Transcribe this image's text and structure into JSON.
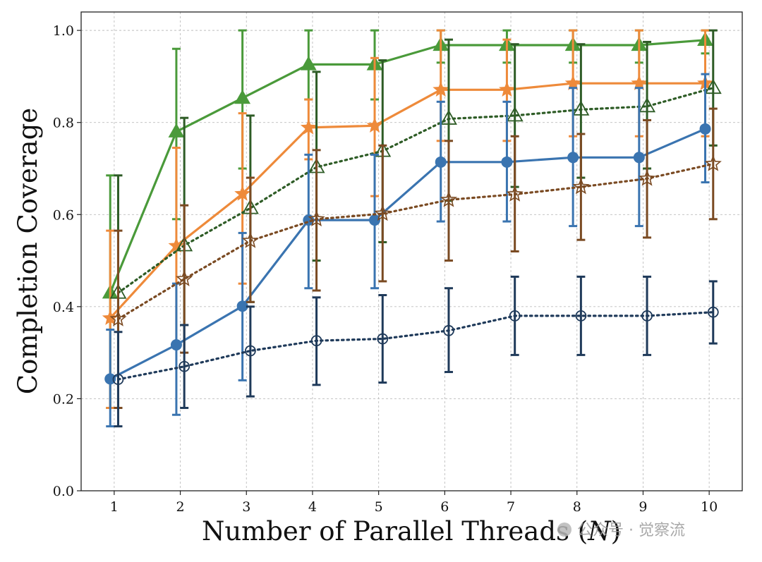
{
  "chart_data": {
    "type": "line",
    "xlabel": "Number of Parallel Threads (N)",
    "xlabel_prefix": "Number of Parallel Threads (",
    "xlabel_var": "N",
    "xlabel_suffix": ")",
    "ylabel": "Completion Coverage",
    "x": [
      1,
      2,
      3,
      4,
      5,
      6,
      7,
      8,
      9,
      10
    ],
    "xlim": [
      0.5,
      10.5
    ],
    "ylim": [
      0.0,
      1.04
    ],
    "yticks": [
      0.0,
      0.2,
      0.4,
      0.6,
      0.8,
      1.0
    ],
    "ytick_labels": [
      "0.0",
      "0.2",
      "0.4",
      "0.6",
      "0.8",
      "1.0"
    ],
    "xtick_labels": [
      "1",
      "2",
      "3",
      "4",
      "5",
      "6",
      "7",
      "8",
      "9",
      "10"
    ],
    "grid": true,
    "legend": "none",
    "series": [
      {
        "color": "#4a9a3a",
        "marker": "triangle",
        "filled": true,
        "dash": "solid",
        "offset": -0.06,
        "values": [
          0.43,
          0.78,
          0.853,
          0.926,
          0.926,
          0.968,
          0.968,
          0.968,
          0.968,
          0.979
        ],
        "lower": [
          0.18,
          0.59,
          0.7,
          0.85,
          0.85,
          0.93,
          0.93,
          0.93,
          0.93,
          0.95
        ],
        "upper": [
          0.685,
          0.96,
          1.0,
          1.0,
          1.0,
          1.0,
          1.0,
          1.0,
          1.0,
          1.0
        ]
      },
      {
        "color": "#ee8a3a",
        "marker": "star",
        "filled": true,
        "dash": "solid",
        "offset": -0.06,
        "values": [
          0.375,
          0.532,
          0.645,
          0.789,
          0.793,
          0.871,
          0.871,
          0.885,
          0.885,
          0.885
        ],
        "lower": [
          0.18,
          0.32,
          0.45,
          0.72,
          0.64,
          0.76,
          0.76,
          0.77,
          0.77,
          0.77
        ],
        "upper": [
          0.565,
          0.745,
          0.82,
          0.85,
          0.94,
          1.0,
          0.98,
          1.0,
          1.0,
          1.0
        ]
      },
      {
        "color": "#2e5c26",
        "marker": "triangle",
        "filled": false,
        "dash": "dotted",
        "offset": 0.06,
        "values": [
          0.43,
          0.533,
          0.614,
          0.703,
          0.738,
          0.808,
          0.815,
          0.828,
          0.835,
          0.875
        ],
        "lower": [
          0.18,
          0.36,
          0.41,
          0.5,
          0.54,
          0.63,
          0.66,
          0.68,
          0.7,
          0.75
        ],
        "upper": [
          0.685,
          0.81,
          0.815,
          0.91,
          0.935,
          0.98,
          0.97,
          0.97,
          0.975,
          1.0
        ]
      },
      {
        "color": "#3a74b0",
        "marker": "circle",
        "filled": true,
        "dash": "solid",
        "offset": -0.06,
        "values": [
          0.243,
          0.317,
          0.401,
          0.588,
          0.588,
          0.714,
          0.714,
          0.724,
          0.724,
          0.786
        ],
        "lower": [
          0.14,
          0.165,
          0.24,
          0.44,
          0.44,
          0.585,
          0.585,
          0.575,
          0.575,
          0.67
        ],
        "upper": [
          0.35,
          0.45,
          0.56,
          0.73,
          0.73,
          0.845,
          0.845,
          0.875,
          0.875,
          0.905
        ]
      },
      {
        "color": "#7a4a22",
        "marker": "star",
        "filled": false,
        "dash": "dotted",
        "offset": 0.06,
        "values": [
          0.373,
          0.46,
          0.543,
          0.59,
          0.602,
          0.632,
          0.644,
          0.66,
          0.678,
          0.71
        ],
        "lower": [
          0.18,
          0.3,
          0.41,
          0.435,
          0.455,
          0.5,
          0.52,
          0.545,
          0.55,
          0.59
        ],
        "upper": [
          0.565,
          0.62,
          0.68,
          0.74,
          0.75,
          0.76,
          0.77,
          0.775,
          0.805,
          0.83
        ]
      },
      {
        "color": "#1f3a5a",
        "marker": "circle",
        "filled": false,
        "dash": "dotted",
        "offset": 0.06,
        "values": [
          0.242,
          0.27,
          0.304,
          0.326,
          0.33,
          0.348,
          0.38,
          0.38,
          0.38,
          0.388
        ],
        "lower": [
          0.14,
          0.18,
          0.205,
          0.23,
          0.235,
          0.258,
          0.295,
          0.295,
          0.295,
          0.32
        ],
        "upper": [
          0.345,
          0.36,
          0.4,
          0.42,
          0.425,
          0.44,
          0.465,
          0.465,
          0.465,
          0.455
        ]
      }
    ]
  },
  "watermark": {
    "text": "公众号 · 觉察流"
  }
}
